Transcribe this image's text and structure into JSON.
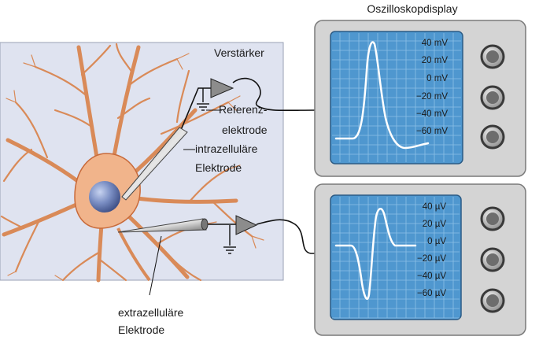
{
  "title": "Oszilloskopdisplay",
  "labels": {
    "amplifier": "Verstärker",
    "reference_electrode": [
      "Referenz-",
      "elektrode"
    ],
    "intracellular_electrode": [
      "intrazelluläre",
      "Elektrode"
    ],
    "extracellular_electrode": [
      "extrazelluläre",
      "Elektrode"
    ]
  },
  "intracellular_scale": [
    "40 mV",
    "20 mV",
    "0 mV",
    "−20 mV",
    "−40 mV",
    "−60 mV"
  ],
  "extracellular_scale": [
    "40 µV",
    "20 µV",
    "0 µV",
    "−20 µV",
    "−40 µV",
    "−60 µV"
  ],
  "colors": {
    "neuron_panel": "#dfe3f0",
    "neuron_body": "#f1b48b",
    "neuron_outline": "#c86a3a",
    "nucleus": "#6c7fb5",
    "screen": "#4f97cf",
    "grid": "#8cc0e6",
    "trace": "#ffffff",
    "casing": "#cfcfcf",
    "knob": "#555555"
  },
  "icons": [
    "amplifier-icon",
    "ground-icon",
    "knob-icon"
  ]
}
